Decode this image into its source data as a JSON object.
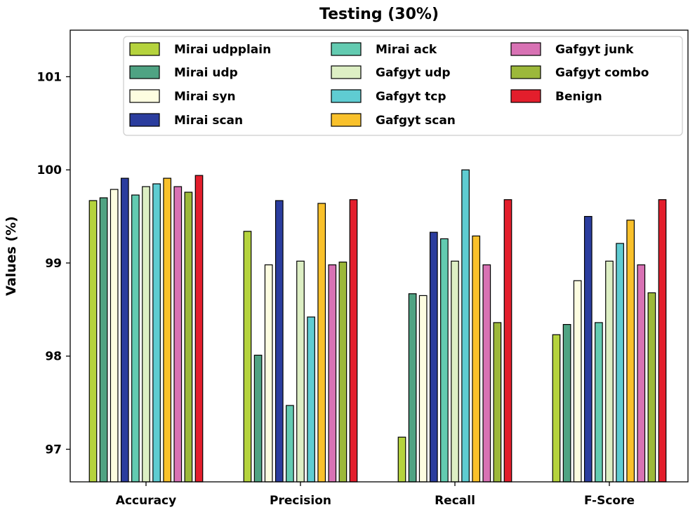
{
  "chart_data": {
    "type": "bar",
    "title": "Testing (30%)",
    "xlabel": "",
    "ylabel": "Values (%)",
    "ylim": [
      96.65,
      101.5
    ],
    "yticks": [
      "97",
      "98",
      "99",
      "100",
      "101"
    ],
    "categories": [
      "Accuracy",
      "Precision",
      "Recall",
      "F-Score"
    ],
    "legend_position": "top-center",
    "grid": false,
    "series": [
      {
        "name": "Mirai udpplain",
        "color": "#b5d33d",
        "values": [
          99.67,
          99.34,
          97.13,
          98.23
        ]
      },
      {
        "name": "Mirai udp",
        "color": "#4fa383",
        "values": [
          99.7,
          98.01,
          98.67,
          98.34
        ]
      },
      {
        "name": "Mirai syn",
        "color": "#fdfde0",
        "values": [
          99.79,
          98.98,
          98.65,
          98.81
        ]
      },
      {
        "name": "Mirai scan",
        "color": "#2b3d9e",
        "values": [
          99.91,
          99.67,
          99.33,
          99.5
        ]
      },
      {
        "name": "Mirai ack",
        "color": "#63cbb1",
        "values": [
          99.73,
          97.47,
          99.26,
          98.36
        ]
      },
      {
        "name": "Gafgyt udp",
        "color": "#ddefc4",
        "values": [
          99.82,
          99.02,
          99.02,
          99.02
        ]
      },
      {
        "name": "Gafgyt tcp",
        "color": "#5fccd2",
        "values": [
          99.85,
          98.42,
          100.0,
          99.21
        ]
      },
      {
        "name": "Gafgyt scan",
        "color": "#f9c12b",
        "values": [
          99.91,
          99.64,
          99.29,
          99.46
        ]
      },
      {
        "name": "Gafgyt junk",
        "color": "#d872b4",
        "values": [
          99.82,
          98.98,
          98.98,
          98.98
        ]
      },
      {
        "name": "Gafgyt combo",
        "color": "#9cb83a",
        "values": [
          99.76,
          99.01,
          98.36,
          98.68
        ]
      },
      {
        "name": "Benign",
        "color": "#e31e2c",
        "values": [
          99.94,
          99.68,
          99.68,
          99.68
        ]
      }
    ]
  }
}
